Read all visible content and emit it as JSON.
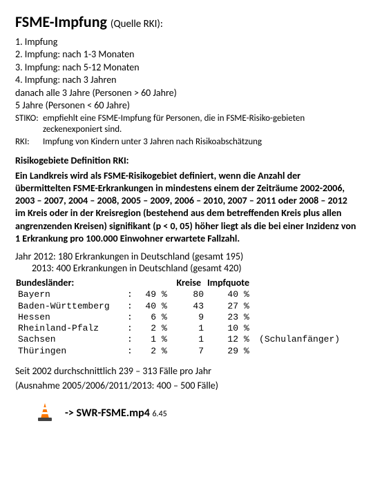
{
  "title_main": "FSME-Impfung",
  "title_sub": "(Quelle RKI):",
  "schedule": [
    "1. Impfung",
    "2. Impfung: nach 1-3  Monaten",
    "3. Impfung: nach 5-12 Monaten",
    "4. Impfung: nach 3 Jahren",
    "danach alle 3 Jahre (Personen > 60 Jahre)"
  ],
  "schedule_indent": "5 Jahre (Personen < 60 Jahre)",
  "notes": [
    {
      "lbl": "STIKO:",
      "text": "empfiehlt eine FSME-Impfung für Personen, die in FSME-Risiko-gebieten zeckenexponiert sind."
    },
    {
      "lbl": "RKI:",
      "text": "Impfung von Kindern unter 3 Jahren nach Risikoabschätzung"
    }
  ],
  "definition_title": "Risikogebiete Definition RKI:",
  "definition_body": "Ein Landkreis wird als FSME-Risikogebiet definiert, wenn die Anzahl der übermittelten FSME-Erkrankungen in mindestens einem der Zeiträume 2002-2006, 2003 – 2007, 2004 – 2008, 2005 – 2009, 2006 – 2010, 2007 – 2011 oder 2008 – 2012 im Kreis oder in der Kreisregion (bestehend aus dem betreffenden Kreis plus allen angrenzenden Kreisen) signifikant (p < 0, 05) höher liegt als die bei einer Inzidenz von 1 Erkrankung pro 100.000 Einwohner erwartete Fallzahl.",
  "year_line1": "Jahr 2012: 180 Erkrankungen in Deutschland (gesamt 195)",
  "year_line2": "2013:  400 Erkrankungen in Deutschland (gesamt 420)",
  "table": {
    "headers": [
      "Bundesländer:",
      "Kreise",
      "Impfquote"
    ],
    "rows": [
      {
        "name": "Bayern",
        "pct": "49",
        "kreise": "80",
        "quote": "40",
        "extra": ""
      },
      {
        "name": "Baden-Württemberg",
        "pct": "40",
        "kreise": "43",
        "quote": "27",
        "extra": ""
      },
      {
        "name": "Hessen",
        "pct": "6",
        "kreise": "9",
        "quote": "23",
        "extra": ""
      },
      {
        "name": "Rheinland-Pfalz",
        "pct": "2",
        "kreise": "1",
        "quote": "10",
        "extra": ""
      },
      {
        "name": "Sachsen",
        "pct": "1",
        "kreise": "1",
        "quote": "12",
        "extra": "(Schulanfänger)"
      },
      {
        "name": "Thüringen",
        "pct": "2",
        "kreise": "7",
        "quote": "29",
        "extra": ""
      }
    ]
  },
  "footer_line1": "Seit 2002 durchschnittlich 239 – 313 Fälle pro Jahr",
  "footer_line2": "(Ausnahme 2005/2006/2011/2013: 400 – 500 Fälle)",
  "media_arrow": "->",
  "media_file": "SWR-FSME.mp4",
  "media_duration": "6.45",
  "icon_colors": {
    "cone_body": "#ff7800",
    "cone_stripe": "#ffffff",
    "cone_base": "#444444"
  }
}
